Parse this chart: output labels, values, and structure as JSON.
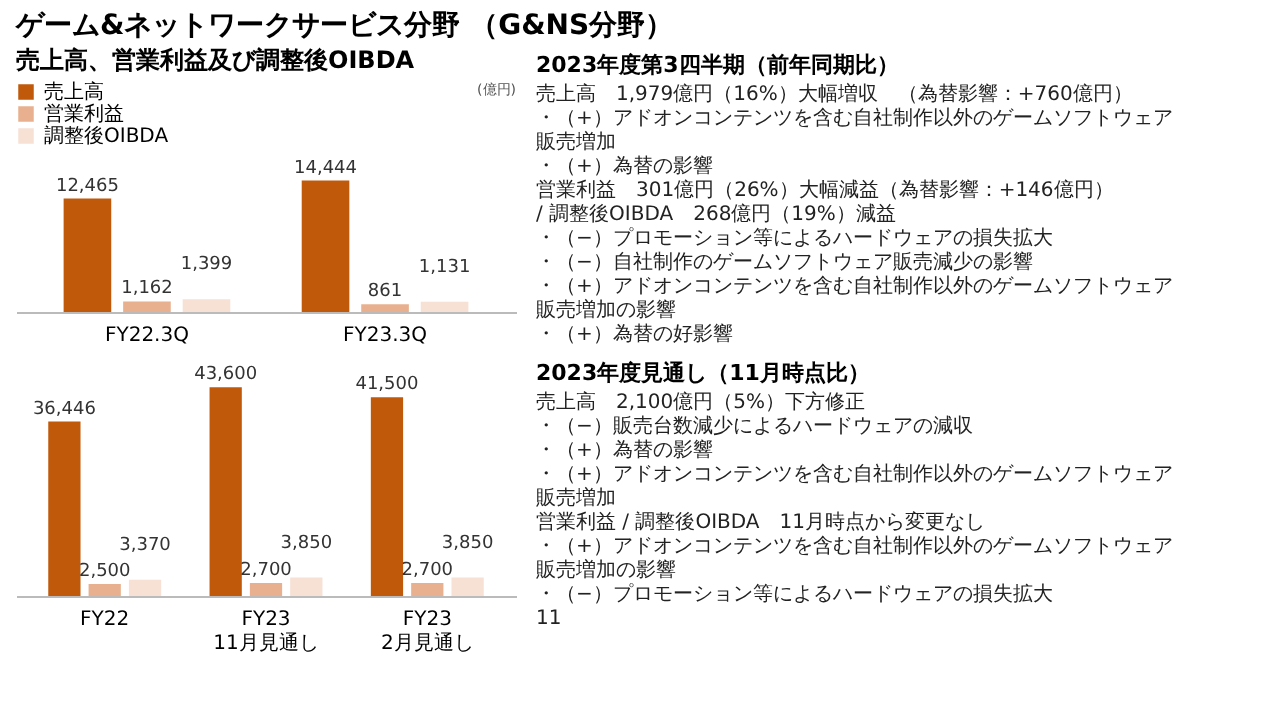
{
  "chart_data": [
    {
      "type": "bar",
      "title": "ゲーム&ネットワークサービス分野 （G&NS分野）",
      "subtitle": "売上高、営業利益及び調整後OIBDA",
      "ylabel": "(億円)",
      "categories": [
        "FY22.3Q",
        "FY23.3Q"
      ],
      "legend": "top left",
      "series": [
        {
          "name": "売上高",
          "color": "#c0590a",
          "values": [
            12465,
            14444
          ],
          "value_labels": [
            "12,465",
            "14,444"
          ]
        },
        {
          "name": "営業利益",
          "color": "#e8b08e",
          "values": [
            1162,
            861
          ],
          "value_labels": [
            "1,162",
            "861"
          ]
        },
        {
          "name": "調整後OIBDA",
          "color": "#f7e0d4",
          "values": [
            1399,
            1131
          ],
          "value_labels": [
            "1,399",
            "1,131"
          ]
        }
      ]
    },
    {
      "type": "bar",
      "categories": [
        "FY22",
        "FY23\n11月見通し",
        "FY23\n2月見通し"
      ],
      "series": [
        {
          "name": "売上高",
          "color": "#c0590a",
          "values": [
            36446,
            43600,
            41500
          ],
          "value_labels": [
            "36,446",
            "43,600",
            "41,500"
          ]
        },
        {
          "name": "営業利益",
          "color": "#e8b08e",
          "values": [
            2500,
            2700,
            2700
          ],
          "value_labels": [
            "2,500",
            "2,700",
            "2,700"
          ]
        },
        {
          "name": "調整後OIBDA",
          "color": "#f7e0d4",
          "values": [
            3370,
            3850,
            3850
          ],
          "value_labels": [
            "3,370",
            "3,850",
            "3,850"
          ]
        }
      ]
    },
    {
      "type": "other",
      "title": "2023年度第3四半期（前年同期比）",
      "annotations": [
        "売上高　1,979億円（16%）大幅増収　（為替影響：+760億円）",
        "・（+）アドオンコンテンツを含む自社制作以外のゲームソフトウェア販売増加",
        "・（+）為替の影響",
        "営業利益　301億円（26%）大幅減益（為替影響：+146億円）",
        "/ 調整後OIBDA　268億円（19%）減益",
        "・（−）プロモーション等によるハードウェアの損失拡大",
        "・（−）自社制作のゲームソフトウェア販売減少の影響",
        "・（+）アドオンコンテンツを含む自社制作以外のゲームソフトウェア販売増加の影響",
        "・（+）為替の好影響"
      ]
    },
    {
      "type": "other",
      "title": "2023年度見通し（11月時点比）",
      "annotations": [
        "売上高　2,100億円（5%）下方修正",
        "・（−）販売台数減少によるハードウェアの減収",
        "・（+）為替の影響",
        "・（+）アドオンコンテンツを含む自社制作以外のゲームソフトウェア販売増加",
        "営業利益 / 調整後OIBDA　11月時点から変更なし",
        "・（+）アドオンコンテンツを含む自社制作以外のゲームソフトウェア販売増加の影響",
        "・（−）プロモーション等によるハードウェアの損失拡大",
        "11"
      ]
    }
  ]
}
